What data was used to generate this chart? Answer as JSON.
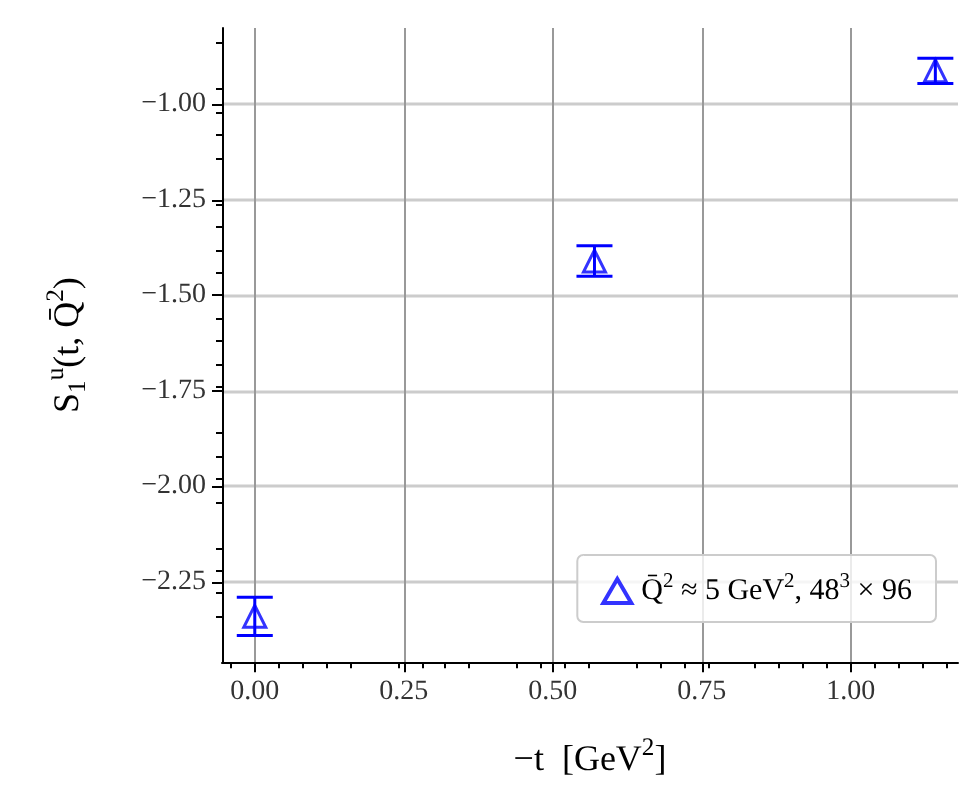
{
  "chart_data": {
    "type": "scatter",
    "xlabel": "−t  [GeV$^{2}$]",
    "ylabel": "S$_{1}$$^{u}$(t, Q̄$^{2}$)",
    "x": [
      0.0,
      0.57,
      1.142
    ],
    "series": [
      {
        "name": "Q̄$^{2}$ ≈ 5 GeV$^{2}$, 48$^{3}$ × 96",
        "color": "#0000ff",
        "values": [
          -2.34,
          -1.41,
          -0.912
        ],
        "errors": [
          0.05,
          0.04,
          0.033
        ]
      }
    ],
    "xlim": [
      -0.055,
      1.18
    ],
    "xticks": [
      {
        "value": 0,
        "label": "0.00"
      },
      0.25,
      {
        "value": 0.5,
        "label": "0.50"
      },
      0.75,
      {
        "value": 1,
        "label": "1.00"
      }
    ],
    "ylim": [
      -2.46,
      -0.8
    ],
    "yticks": [
      {
        "value": -2.25,
        "label": "−2.25"
      },
      {
        "value": -2,
        "label": "−2.00"
      },
      {
        "value": -1.75,
        "label": "−1.75"
      },
      {
        "value": -1.5,
        "label": "−1.50"
      },
      {
        "value": -1.25,
        "label": "−1.25"
      },
      {
        "value": -1,
        "label": "−1.00"
      }
    ],
    "grid": true,
    "legend": "bottom right",
    "marker": "triangle"
  }
}
